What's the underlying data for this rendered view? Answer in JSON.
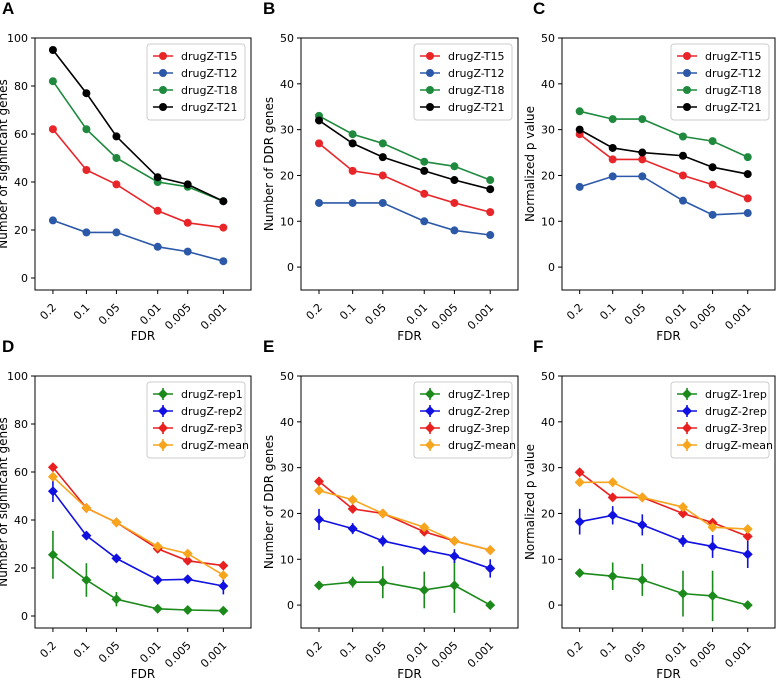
{
  "fdr_categories": [
    "0.2",
    "0.1",
    "0.05",
    "0.01",
    "0.005",
    "0.001"
  ],
  "chart_data": [
    {
      "panel": "A",
      "type": "line",
      "xlabel": "FDR",
      "ylabel": "Number of significant genes",
      "ylim": [
        -5,
        100
      ],
      "yticks": [
        0,
        20,
        40,
        60,
        80,
        100
      ],
      "legend": "top-right",
      "series": [
        {
          "name": "drugZ-T15",
          "color": "#e8262a",
          "values": [
            62,
            45,
            39,
            28,
            23,
            21
          ]
        },
        {
          "name": "drugZ-T12",
          "color": "#2c58a8",
          "values": [
            24,
            19,
            19,
            13,
            11,
            7
          ]
        },
        {
          "name": "drugZ-T18",
          "color": "#1f8a3e",
          "values": [
            82,
            62,
            50,
            40,
            38,
            32
          ]
        },
        {
          "name": "drugZ-T21",
          "color": "#000000",
          "values": [
            95,
            77,
            59,
            42,
            39,
            32
          ]
        }
      ]
    },
    {
      "panel": "B",
      "type": "line",
      "xlabel": "FDR",
      "ylabel": "Number of DDR genes",
      "ylim": [
        -5,
        50
      ],
      "yticks": [
        0,
        10,
        20,
        30,
        40,
        50
      ],
      "legend": "top-right",
      "series": [
        {
          "name": "drugZ-T15",
          "color": "#e8262a",
          "values": [
            27,
            21,
            20,
            16,
            14,
            12
          ]
        },
        {
          "name": "drugZ-T12",
          "color": "#2c58a8",
          "values": [
            14,
            14,
            14,
            10,
            8,
            7
          ]
        },
        {
          "name": "drugZ-T18",
          "color": "#1f8a3e",
          "values": [
            33,
            29,
            27,
            23,
            22,
            19
          ]
        },
        {
          "name": "drugZ-T21",
          "color": "#000000",
          "values": [
            32,
            27,
            24,
            21,
            19,
            17
          ]
        }
      ]
    },
    {
      "panel": "C",
      "type": "line",
      "xlabel": "FDR",
      "ylabel": "Normalized p value",
      "ylim": [
        -5,
        50
      ],
      "yticks": [
        0,
        10,
        20,
        30,
        40,
        50
      ],
      "legend": "top-right",
      "series": [
        {
          "name": "drugZ-T15",
          "color": "#e8262a",
          "values": [
            29,
            23.5,
            23.5,
            20,
            18,
            15
          ]
        },
        {
          "name": "drugZ-T12",
          "color": "#2c58a8",
          "values": [
            17.5,
            19.8,
            19.8,
            14.5,
            11.4,
            11.8
          ]
        },
        {
          "name": "drugZ-T18",
          "color": "#1f8a3e",
          "values": [
            34,
            32.3,
            32.3,
            28.5,
            27.5,
            24
          ]
        },
        {
          "name": "drugZ-T21",
          "color": "#000000",
          "values": [
            30,
            26,
            25,
            24.3,
            21.8,
            20.3
          ]
        }
      ]
    },
    {
      "panel": "D",
      "type": "line",
      "xlabel": "FDR",
      "ylabel": "Number of significant genes",
      "ylim": [
        -5,
        100
      ],
      "yticks": [
        0,
        20,
        40,
        60,
        80,
        100
      ],
      "legend": "top-right",
      "errorbars": true,
      "series": [
        {
          "name": "drugZ-rep1",
          "color": "#1b8a1b",
          "values": [
            25.5,
            15,
            7,
            3,
            2.5,
            2.2
          ],
          "errors": [
            10,
            7,
            3,
            1.5,
            1,
            0.5
          ]
        },
        {
          "name": "drugZ-rep2",
          "color": "#1010e0",
          "values": [
            52,
            33.5,
            24,
            15,
            15.3,
            12.5
          ],
          "errors": [
            4.5,
            1.5,
            1.5,
            1,
            1.5,
            3.5
          ]
        },
        {
          "name": "drugZ-rep3",
          "color": "#e82020",
          "values": [
            62,
            45,
            39,
            28,
            23,
            21
          ],
          "errors": [
            0,
            0,
            0,
            0,
            0,
            0
          ]
        },
        {
          "name": "drugZ-mean",
          "color": "#f7a51c",
          "values": [
            58,
            45,
            39,
            29,
            26,
            17
          ],
          "errors": [
            0,
            0,
            0,
            0,
            0,
            0
          ]
        }
      ]
    },
    {
      "panel": "E",
      "type": "line",
      "xlabel": "FDR",
      "ylabel": "Number of DDR genes",
      "ylim": [
        -5,
        50
      ],
      "yticks": [
        0,
        10,
        20,
        30,
        40,
        50
      ],
      "legend": "top-right",
      "errorbars": true,
      "series": [
        {
          "name": "drugZ-1rep",
          "color": "#1b8a1b",
          "values": [
            4.3,
            5,
            5,
            3.3,
            4.3,
            0
          ],
          "errors": [
            0.8,
            1.2,
            3.5,
            4,
            6,
            0
          ]
        },
        {
          "name": "drugZ-2rep",
          "color": "#1010e0",
          "values": [
            18.7,
            16.7,
            14,
            12,
            10.7,
            8
          ],
          "errors": [
            2.3,
            1.2,
            1.2,
            0.5,
            1.5,
            2
          ]
        },
        {
          "name": "drugZ-3rep",
          "color": "#e82020",
          "values": [
            27,
            21,
            20,
            16,
            14,
            12
          ],
          "errors": [
            0,
            0,
            0,
            0,
            0,
            0
          ]
        },
        {
          "name": "drugZ-mean",
          "color": "#f7a51c",
          "values": [
            25,
            23,
            20,
            17,
            14,
            12
          ],
          "errors": [
            0,
            0,
            0,
            0,
            0,
            0
          ]
        }
      ]
    },
    {
      "panel": "F",
      "type": "line",
      "xlabel": "FDR",
      "ylabel": "Normalized p value",
      "ylim": [
        -5,
        50
      ],
      "yticks": [
        0,
        10,
        20,
        30,
        40,
        50
      ],
      "legend": "top-right",
      "errorbars": true,
      "series": [
        {
          "name": "drugZ-1rep",
          "color": "#1b8a1b",
          "values": [
            7,
            6.3,
            5.5,
            2.5,
            2,
            0
          ],
          "errors": [
            0.5,
            3,
            3.5,
            5,
            5.5,
            0
          ]
        },
        {
          "name": "drugZ-2rep",
          "color": "#1010e0",
          "values": [
            18.2,
            19.6,
            17.5,
            14,
            12.8,
            11.1
          ],
          "errors": [
            2.8,
            2,
            2.3,
            1.3,
            2.5,
            3
          ]
        },
        {
          "name": "drugZ-3rep",
          "color": "#e82020",
          "values": [
            29,
            23.5,
            23.5,
            20,
            18,
            15
          ],
          "errors": [
            0,
            0,
            0,
            0,
            0,
            0
          ]
        },
        {
          "name": "drugZ-mean",
          "color": "#f7a51c",
          "values": [
            26.8,
            26.8,
            23.5,
            21.4,
            17,
            16.6
          ],
          "errors": [
            0,
            0,
            0,
            0,
            0,
            0
          ]
        }
      ]
    }
  ]
}
